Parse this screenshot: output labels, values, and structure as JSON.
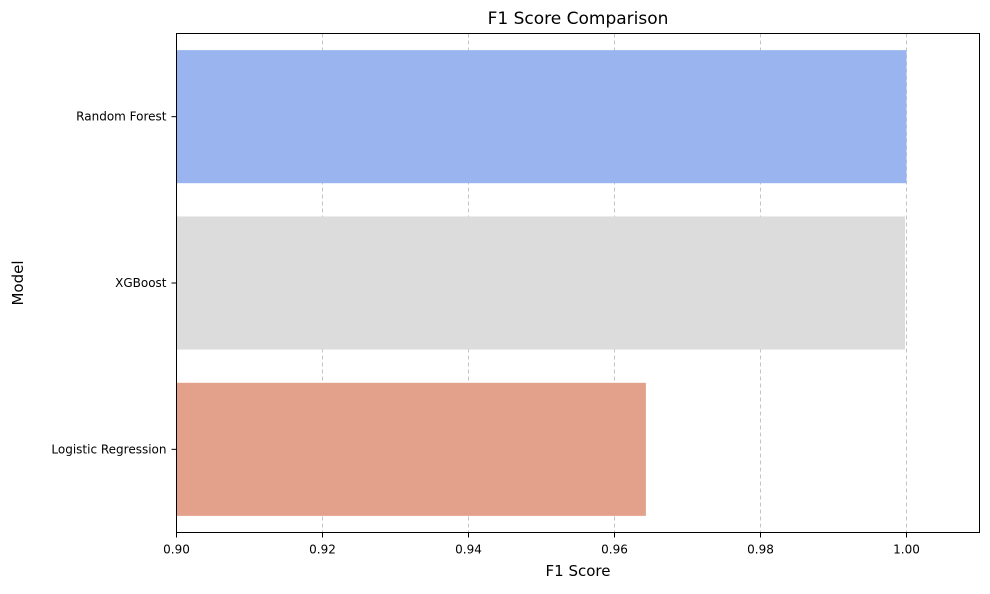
{
  "chart_data": {
    "type": "bar",
    "orientation": "horizontal",
    "title": "F1 Score Comparison",
    "xlabel": "F1 Score",
    "ylabel": "Model",
    "categories": [
      "Random Forest",
      "XGBoost",
      "Logistic Regression"
    ],
    "values": [
      1.0,
      0.9998,
      0.9643
    ],
    "colors": [
      "#9ab4ef",
      "#dcdcdc",
      "#e3a18b"
    ],
    "xlim": [
      0.9,
      1.01
    ],
    "xticks": [
      "0.90",
      "0.92",
      "0.94",
      "0.96",
      "0.98",
      "1.00"
    ],
    "grid": "x-dashed"
  }
}
